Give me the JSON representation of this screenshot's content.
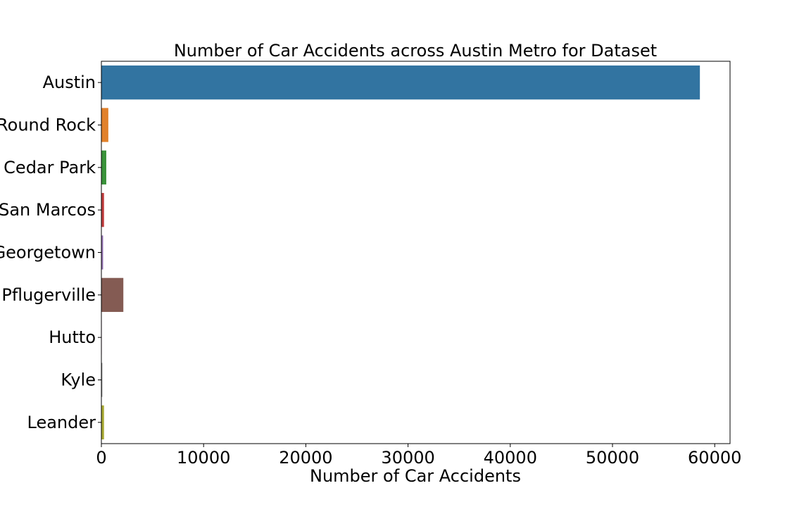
{
  "chart_data": {
    "type": "bar",
    "orientation": "horizontal",
    "title": "Number of Car Accidents across Austin Metro for Dataset",
    "xlabel": "Number of Car Accidents",
    "ylabel": "",
    "categories": [
      "Austin",
      "Round Rock",
      "Cedar Park",
      "San Marcos",
      "Georgetown",
      "Pflugerville",
      "Hutto",
      "Kyle",
      "Leander"
    ],
    "values": [
      58550,
      680,
      480,
      260,
      170,
      2150,
      40,
      90,
      260
    ],
    "colors": [
      "#3274a1",
      "#e1812c",
      "#3a923a",
      "#c03d3e",
      "#9372b2",
      "#845b53",
      "#d684bd",
      "#7f7f7f",
      "#a9aa35"
    ],
    "xlim": [
      0,
      61500
    ],
    "xticks": [
      0,
      10000,
      20000,
      30000,
      40000,
      50000,
      60000
    ],
    "grid": false,
    "legend": "none"
  }
}
